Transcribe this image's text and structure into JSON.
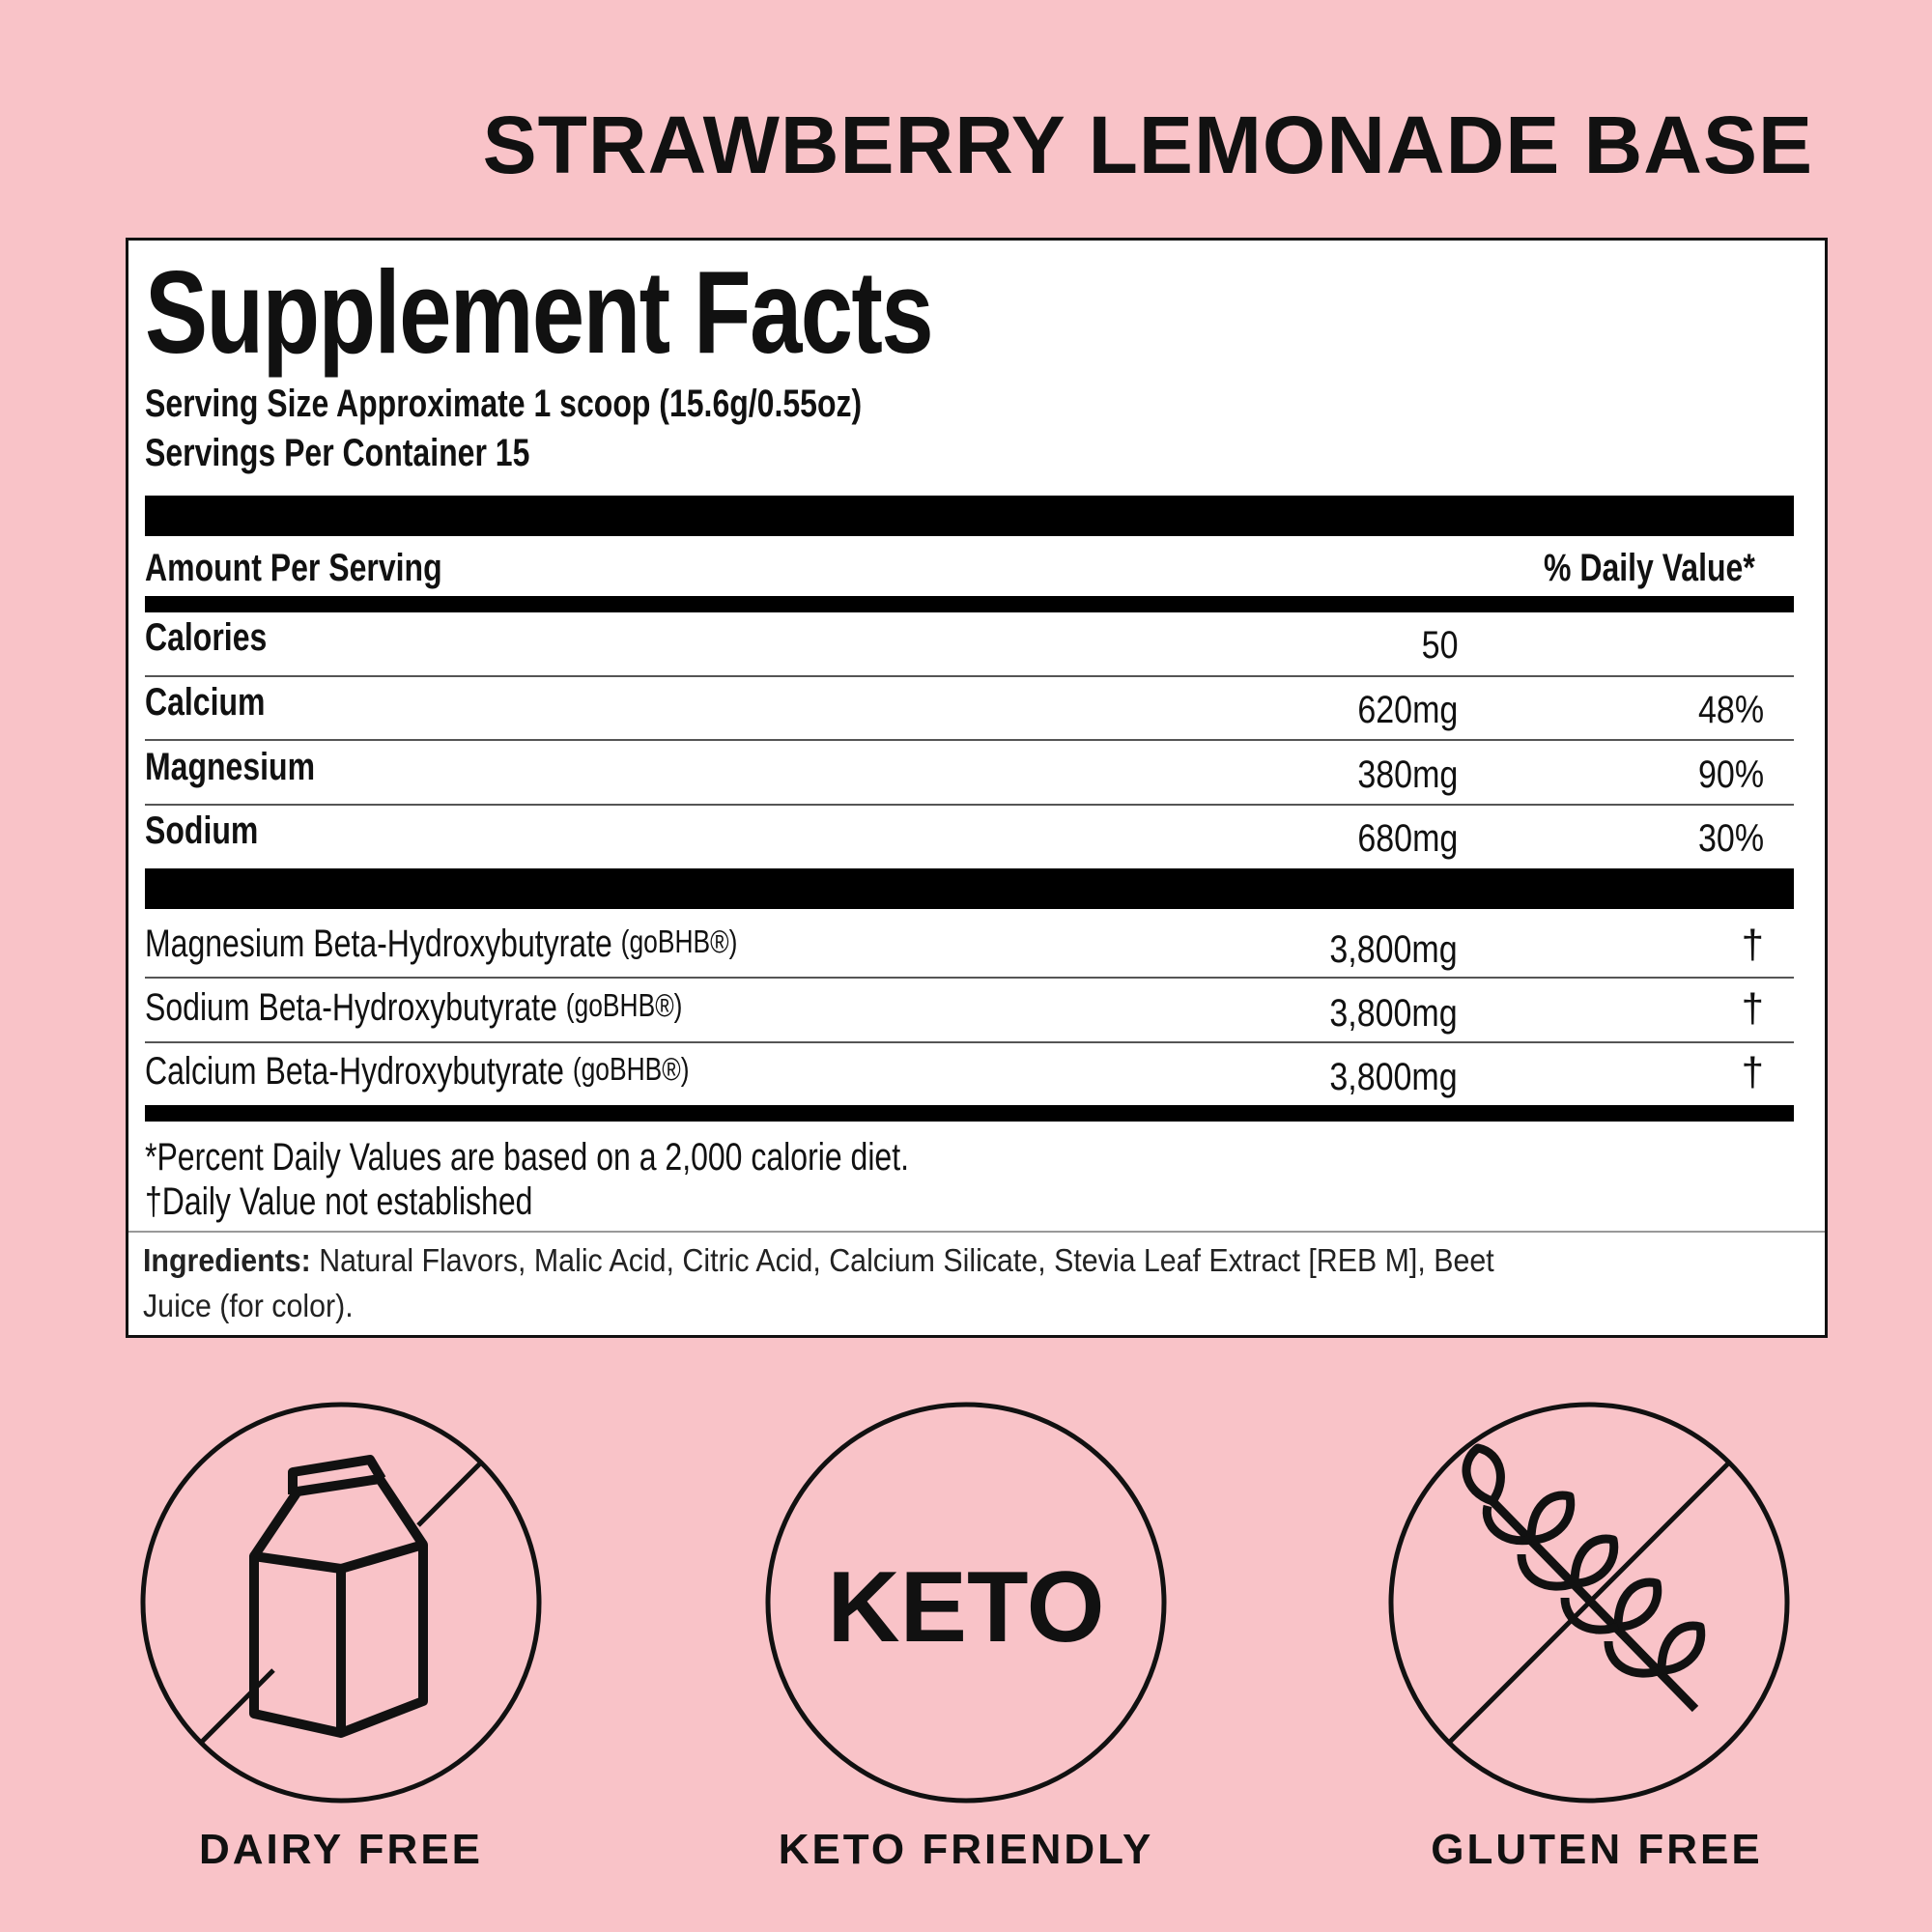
{
  "heading": "STRAWBERRY LEMONADE BASE",
  "label": {
    "title": "Supplement Facts",
    "serving_size": "Serving Size Approximate 1 scoop (15.6g/0.55oz)",
    "servings_per_container": "Servings Per Container 15",
    "amount_header": "Amount Per Serving",
    "dv_header": "% Daily Value*",
    "nutrients": [
      {
        "name": "Calories",
        "amount": "50",
        "dv": ""
      },
      {
        "name": "Calcium",
        "amount": "620mg",
        "dv": "48%"
      },
      {
        "name": "Magnesium",
        "amount": "380mg",
        "dv": "90%"
      },
      {
        "name": "Sodium",
        "amount": "680mg",
        "dv": "30%"
      }
    ],
    "ingredients_list": [
      {
        "name": "Magnesium Beta-Hydroxybutyrate",
        "brand": "(goBHB®)",
        "amount": "3,800mg",
        "dv": "†"
      },
      {
        "name": "Sodium Beta-Hydroxybutyrate",
        "brand": "(goBHB®)",
        "amount": "3,800mg",
        "dv": "†"
      },
      {
        "name": "Calcium Beta-Hydroxybutyrate",
        "brand": "(goBHB®)",
        "amount": "3,800mg",
        "dv": "†"
      }
    ],
    "footnote_1": "*Percent Daily Values are based on a 2,000 calorie diet.",
    "footnote_2": "†Daily Value not established",
    "ingredients_label": "Ingredients:",
    "ingredients_text": "Natural Flavors, Malic Acid, Citric Acid, Calcium Silicate, Stevia Leaf Extract [REB M], Beet",
    "ingredients_text_2": "Juice (for color)."
  },
  "badges": [
    {
      "icon": "milk-carton-crossed-icon",
      "label": "DAIRY FREE"
    },
    {
      "icon": "keto-icon",
      "text": "KETO",
      "label": "KETO FRIENDLY"
    },
    {
      "icon": "wheat-crossed-icon",
      "label": "GLUTEN FREE"
    }
  ],
  "colors": {
    "background": "#f9c3c8",
    "text": "#111111"
  }
}
